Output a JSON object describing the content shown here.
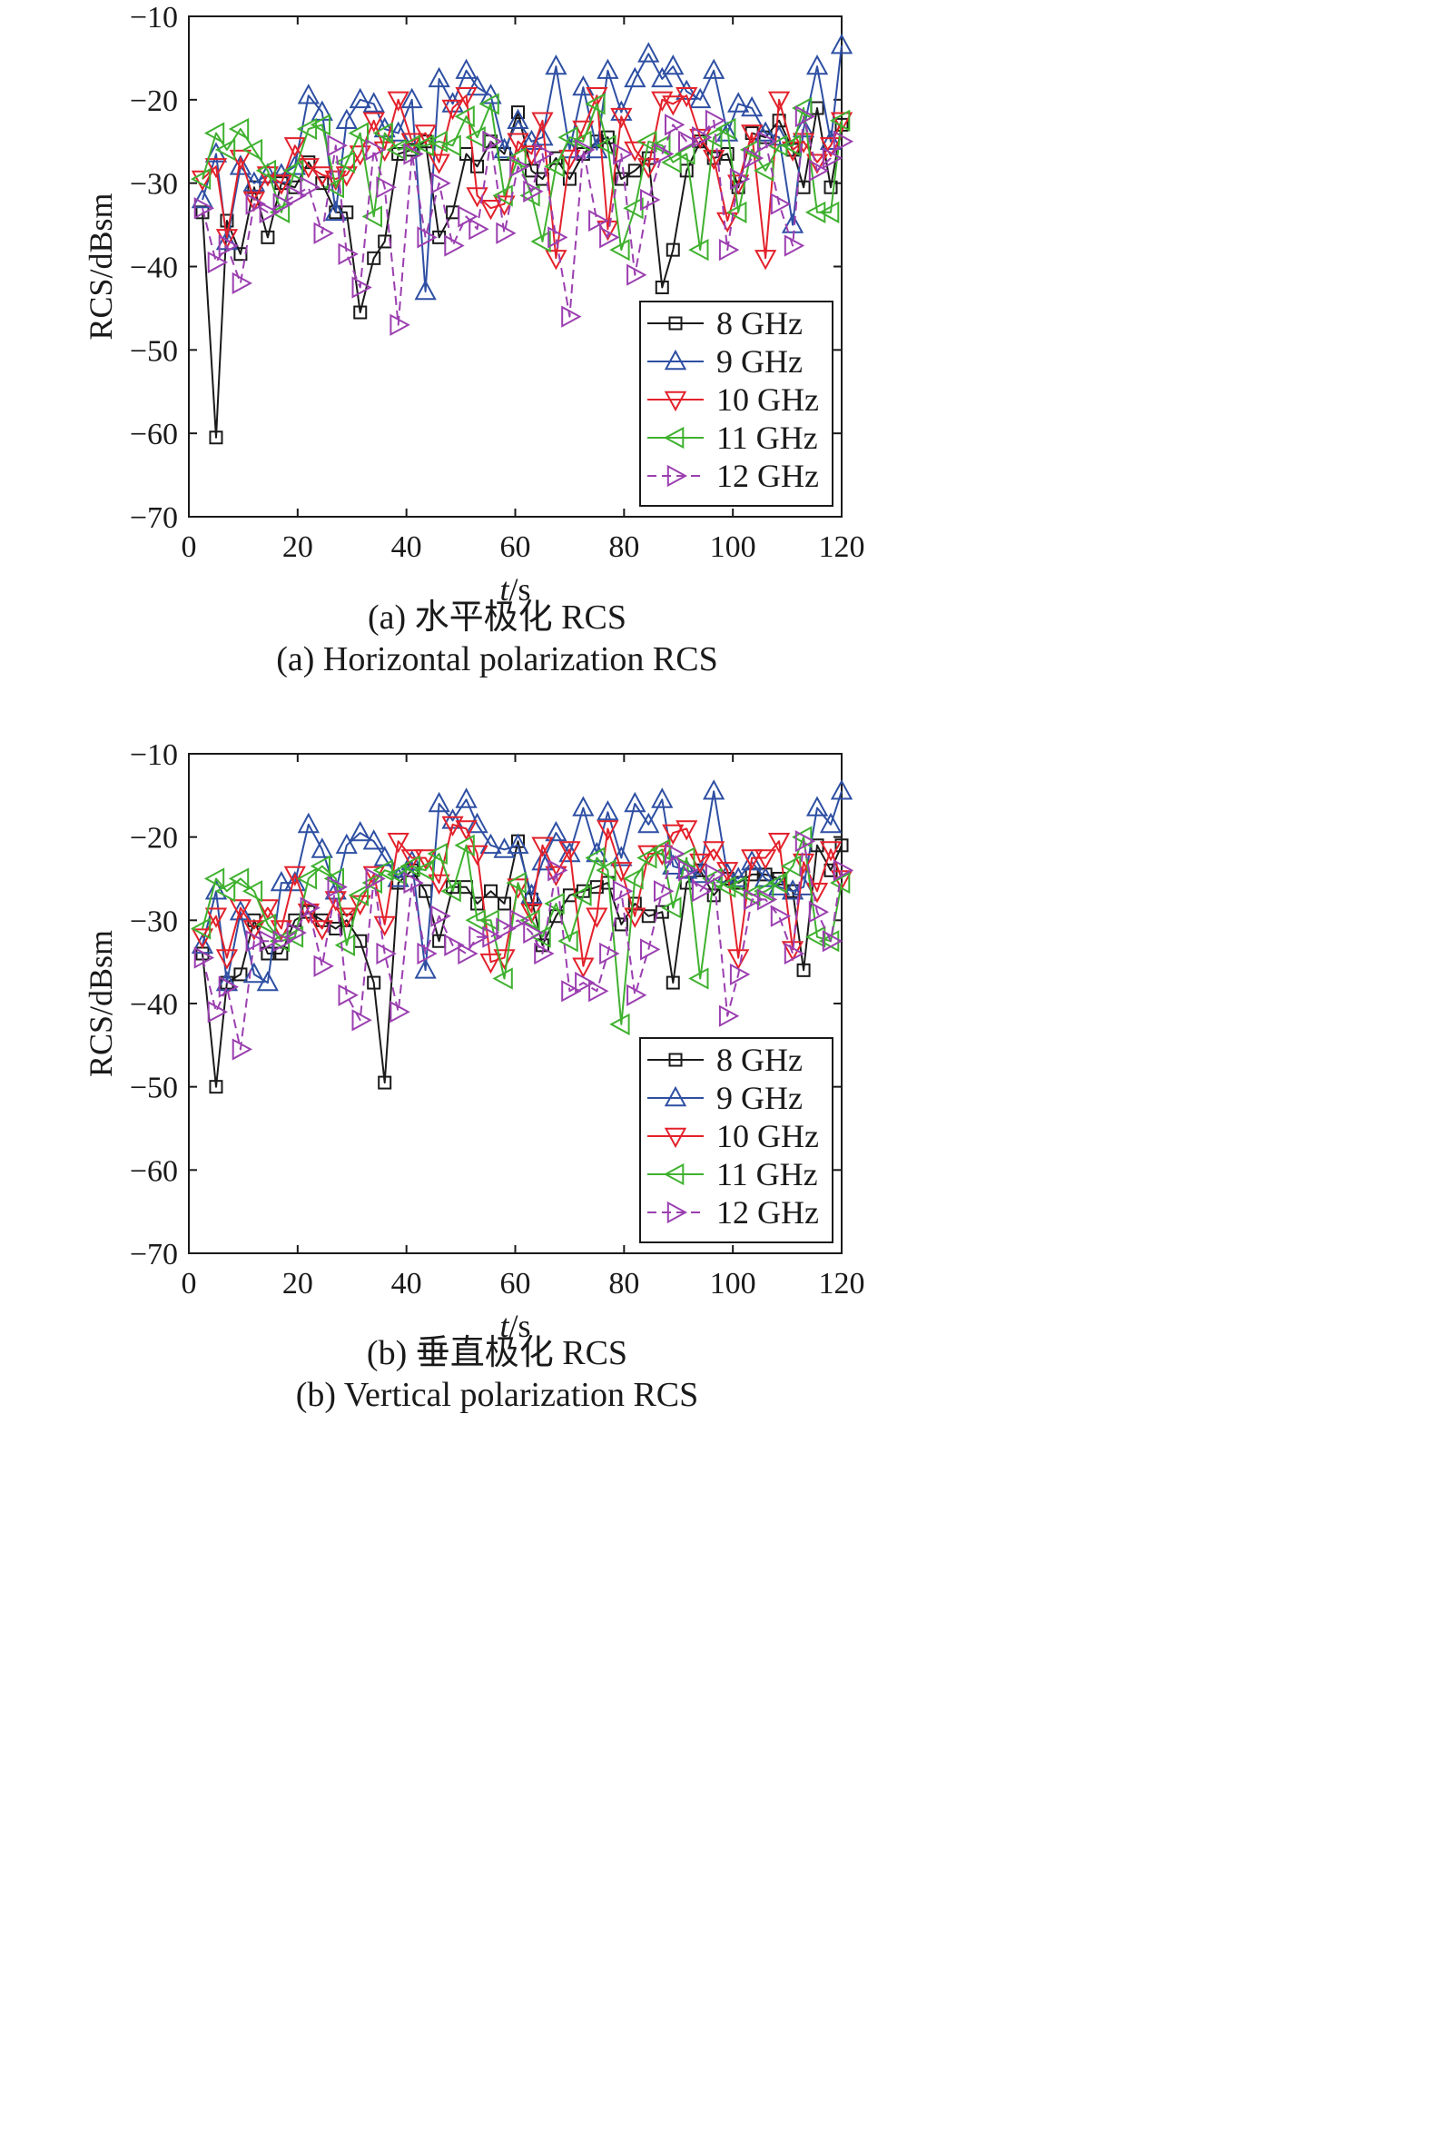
{
  "colors": {
    "8 GHz": "#1a1a1a",
    "9 GHz": "#2e4fa3",
    "10 GHz": "#e3212b",
    "11 GHz": "#3fb12f",
    "12 GHz": "#9b3fb0"
  },
  "chart_data": [
    {
      "type": "line",
      "caption_cn": "(a) 水平极化 RCS",
      "caption_en": "(a) Horizontal polarization RCS",
      "xlabel_italic": "t",
      "xlabel_unit": "/s",
      "ylabel": "RCS/dBsm",
      "xlim": [
        0,
        120
      ],
      "ylim": [
        -70,
        -10
      ],
      "xticks": [
        0,
        20,
        40,
        60,
        80,
        100,
        120
      ],
      "yticks": [
        -10,
        -20,
        -30,
        -40,
        -50,
        -60,
        -70
      ],
      "grid": false,
      "legend_position": "bottom-right",
      "x": [
        2.5,
        5,
        7,
        9.5,
        12,
        14.5,
        17,
        19.5,
        22,
        24.5,
        27,
        29,
        31.5,
        34,
        36,
        38.5,
        41,
        43.5,
        46,
        48.5,
        51,
        53,
        55.5,
        58,
        60.5,
        63,
        65,
        67.5,
        70,
        72.5,
        75,
        77,
        79.5,
        82,
        84.5,
        87,
        89,
        91.5,
        94,
        96.5,
        99,
        101,
        103.5,
        106,
        108.5,
        111,
        113,
        115.5,
        118,
        120
      ],
      "series": [
        {
          "name": "8 GHz",
          "marker": "square",
          "dash": "solid",
          "values": [
            -33.5,
            -60.5,
            -34.5,
            -38.5,
            -30.5,
            -36.5,
            -30,
            -30.5,
            -27.5,
            -30,
            -33.5,
            -33.5,
            -45.5,
            -39,
            -37,
            -26.5,
            -26,
            -25,
            -36.5,
            -33.5,
            -26.5,
            -28,
            -25,
            -26.5,
            -21.5,
            -28.5,
            -29.5,
            -27,
            -29.5,
            -26.5,
            -25,
            -24.5,
            -29.5,
            -28.5,
            -27,
            -42.5,
            -38,
            -28.5,
            -25,
            -27,
            -26.5,
            -30.5,
            -24,
            -24.5,
            -22.5,
            -26,
            -30.5,
            -21,
            -30.5,
            -23
          ]
        },
        {
          "name": "9 GHz",
          "marker": "triangle-up",
          "dash": "solid",
          "values": [
            -32,
            -26.5,
            -37,
            -28,
            -30,
            -29,
            -29,
            -28,
            -19.5,
            -21.5,
            -33.5,
            -22.5,
            -20,
            -20.5,
            -23.5,
            -24,
            -20,
            -43,
            -17.5,
            -20.5,
            -16.5,
            -18.5,
            -19.5,
            -26,
            -22.5,
            -25,
            -24.5,
            -16,
            -26,
            -18.5,
            -26,
            -16.5,
            -21.5,
            -17.5,
            -14.5,
            -17.5,
            -16,
            -19,
            -20,
            -16.5,
            -24,
            -20.5,
            -21,
            -24,
            -24.5,
            -35,
            -23.5,
            -16,
            -25,
            -13.5
          ]
        },
        {
          "name": "10 GHz",
          "marker": "triangle-down",
          "dash": "solid",
          "values": [
            -29.5,
            -28,
            -36.5,
            -27,
            -32,
            -29,
            -30,
            -25.5,
            -28,
            -29,
            -29.5,
            -29,
            -26.5,
            -22.5,
            -26,
            -20,
            -25,
            -24,
            -27.5,
            -21,
            -19.5,
            -31.5,
            -33,
            -32.5,
            -25,
            -26.5,
            -22.5,
            -39,
            -27,
            -23.5,
            -19.5,
            -35.5,
            -22,
            -26,
            -28,
            -20,
            -20.5,
            -19.5,
            -24.5,
            -27,
            -34.5,
            -30,
            -24,
            -39,
            -20,
            -26,
            -25,
            -27.5,
            -25.5,
            -22.5
          ]
        },
        {
          "name": "11 GHz",
          "marker": "triangle-left",
          "dash": "solid",
          "values": [
            -29.5,
            -24,
            -26,
            -23.5,
            -26,
            -28.5,
            -33.5,
            -28.5,
            -23.5,
            -23,
            -30.5,
            -27.5,
            -24,
            -34,
            -24,
            -26,
            -25.5,
            -25.5,
            -25,
            -25.5,
            -22,
            -24.5,
            -20.5,
            -31.5,
            -27,
            -31.5,
            -37,
            -28,
            -24.5,
            -25,
            -20.5,
            -25.5,
            -38,
            -33,
            -25,
            -25.5,
            -27.5,
            -26.5,
            -38,
            -24.5,
            -23.5,
            -33.5,
            -26,
            -28.5,
            -25.5,
            -25.5,
            -21,
            -33.5,
            -33.5,
            -22.5
          ]
        },
        {
          "name": "12 GHz",
          "marker": "triangle-right",
          "dash": "dashed",
          "values": [
            -33,
            -39.5,
            -37.5,
            -42,
            -32.5,
            -33.5,
            -32.5,
            -31.5,
            -30.5,
            -36,
            -25.5,
            -38.5,
            -42.5,
            -26,
            -30.5,
            -47,
            -26.5,
            -36.5,
            -30,
            -37.5,
            -34,
            -35.5,
            -25,
            -36,
            -28,
            -31,
            -26.5,
            -36.5,
            -46,
            -26,
            -34.5,
            -36.5,
            -26.5,
            -41,
            -32,
            -26.5,
            -23,
            -25,
            -24.5,
            -22.5,
            -38,
            -29.5,
            -27,
            -25,
            -32.5,
            -37.5,
            -22,
            -28.5,
            -27,
            -25
          ]
        }
      ]
    },
    {
      "type": "line",
      "caption_cn": "(b)  垂直极化 RCS",
      "caption_en": "(b) Vertical polarization RCS",
      "xlabel_italic": "t",
      "xlabel_unit": "/s",
      "ylabel": "RCS/dBsm",
      "xlim": [
        0,
        120
      ],
      "ylim": [
        -70,
        -10
      ],
      "xticks": [
        0,
        20,
        40,
        60,
        80,
        100,
        120
      ],
      "yticks": [
        -10,
        -20,
        -30,
        -40,
        -50,
        -60,
        -70
      ],
      "grid": false,
      "legend_position": "bottom-right",
      "x": [
        2.5,
        5,
        7,
        9.5,
        12,
        14.5,
        17,
        19.5,
        22,
        24.5,
        27,
        29,
        31.5,
        34,
        36,
        38.5,
        41,
        43.5,
        46,
        48.5,
        51,
        53,
        55.5,
        58,
        60.5,
        63,
        65,
        67.5,
        70,
        72.5,
        75,
        77,
        79.5,
        82,
        84.5,
        87,
        89,
        91.5,
        94,
        96.5,
        99,
        101,
        103.5,
        106,
        108.5,
        111,
        113,
        115.5,
        118,
        120
      ],
      "series": [
        {
          "name": "8 GHz",
          "marker": "square",
          "dash": "solid",
          "values": [
            -34,
            -50,
            -37.5,
            -36.5,
            -30,
            -34,
            -34,
            -30,
            -29,
            -30,
            -31,
            -30,
            -32.5,
            -37.5,
            -49.5,
            -25.5,
            -24,
            -26.5,
            -32.5,
            -26,
            -26,
            -28,
            -26.5,
            -28,
            -20.5,
            -27.5,
            -33,
            -29.5,
            -27,
            -26.5,
            -26,
            -25.5,
            -30.5,
            -28,
            -29.5,
            -29,
            -37.5,
            -25.5,
            -24,
            -27,
            -25,
            -25.5,
            -24.5,
            -24.5,
            -25,
            -26.5,
            -36,
            -21,
            -24,
            -21
          ]
        },
        {
          "name": "9 GHz",
          "marker": "triangle-up",
          "dash": "solid",
          "values": [
            -33,
            -26.5,
            -37.5,
            -29,
            -36.5,
            -37.5,
            -25.5,
            -25.5,
            -18.5,
            -21.5,
            -26.5,
            -21,
            -19.5,
            -20.5,
            -22.5,
            -25,
            -23,
            -36,
            -16,
            -18,
            -15.5,
            -18.5,
            -21,
            -21.5,
            -21,
            -27,
            -23,
            -19.5,
            -22,
            -16.5,
            -22,
            -17,
            -22.5,
            -16,
            -18.5,
            -15.5,
            -23.5,
            -24,
            -24.5,
            -14.5,
            -24.5,
            -25,
            -23,
            -25,
            -26,
            -26.5,
            -26,
            -16.5,
            -18.5,
            -14.5
          ]
        },
        {
          "name": "10 GHz",
          "marker": "triangle-down",
          "dash": "solid",
          "values": [
            -32,
            -29.5,
            -34.5,
            -28.5,
            -31,
            -28.5,
            -31,
            -24.5,
            -29,
            -31,
            -27.5,
            -29.5,
            -28,
            -24.5,
            -30.5,
            -20.5,
            -22.5,
            -22.5,
            -25.5,
            -18.5,
            -19,
            -22,
            -35,
            -34.5,
            -26,
            -29,
            -21,
            -24.5,
            -21.5,
            -35.5,
            -29.5,
            -19,
            -24,
            -29.5,
            -22,
            -22,
            -19.5,
            -19,
            -23,
            -21.5,
            -24,
            -34.5,
            -22.5,
            -22.5,
            -20.5,
            -33.5,
            -23,
            -26.5,
            -21.5,
            -25
          ]
        },
        {
          "name": "11 GHz",
          "marker": "triangle-left",
          "dash": "solid",
          "values": [
            -31,
            -25,
            -26.5,
            -25,
            -26.5,
            -30.5,
            -32.5,
            -32,
            -25,
            -23.5,
            -25,
            -33,
            -27,
            -25.5,
            -24,
            -24.5,
            -23.5,
            -24,
            -22,
            -26.5,
            -21,
            -30,
            -30,
            -37,
            -25.5,
            -30,
            -32,
            -28,
            -32.5,
            -27,
            -22.5,
            -24,
            -42.5,
            -25,
            -22.5,
            -21.5,
            -28.5,
            -22.5,
            -37,
            -25,
            -26,
            -26,
            -27,
            -26.5,
            -25.5,
            -23.5,
            -20,
            -32,
            -32.5,
            -25.5
          ]
        },
        {
          "name": "12 GHz",
          "marker": "triangle-right",
          "dash": "dashed",
          "values": [
            -34.5,
            -41,
            -38,
            -45.5,
            -32.5,
            -32.5,
            -32.5,
            -31.5,
            -28.5,
            -35.5,
            -26,
            -39,
            -42,
            -25,
            -34,
            -41,
            -25.5,
            -34,
            -29.5,
            -33,
            -34,
            -32,
            -32,
            -31,
            -30,
            -31.5,
            -34,
            -24,
            -38.5,
            -37.5,
            -38.5,
            -34,
            -26.5,
            -39,
            -33.5,
            -26.5,
            -22,
            -24,
            -26.5,
            -24.5,
            -41.5,
            -36.5,
            -27.5,
            -27.5,
            -29.5,
            -34,
            -20.5,
            -29,
            -32.5,
            -24
          ]
        }
      ]
    }
  ]
}
